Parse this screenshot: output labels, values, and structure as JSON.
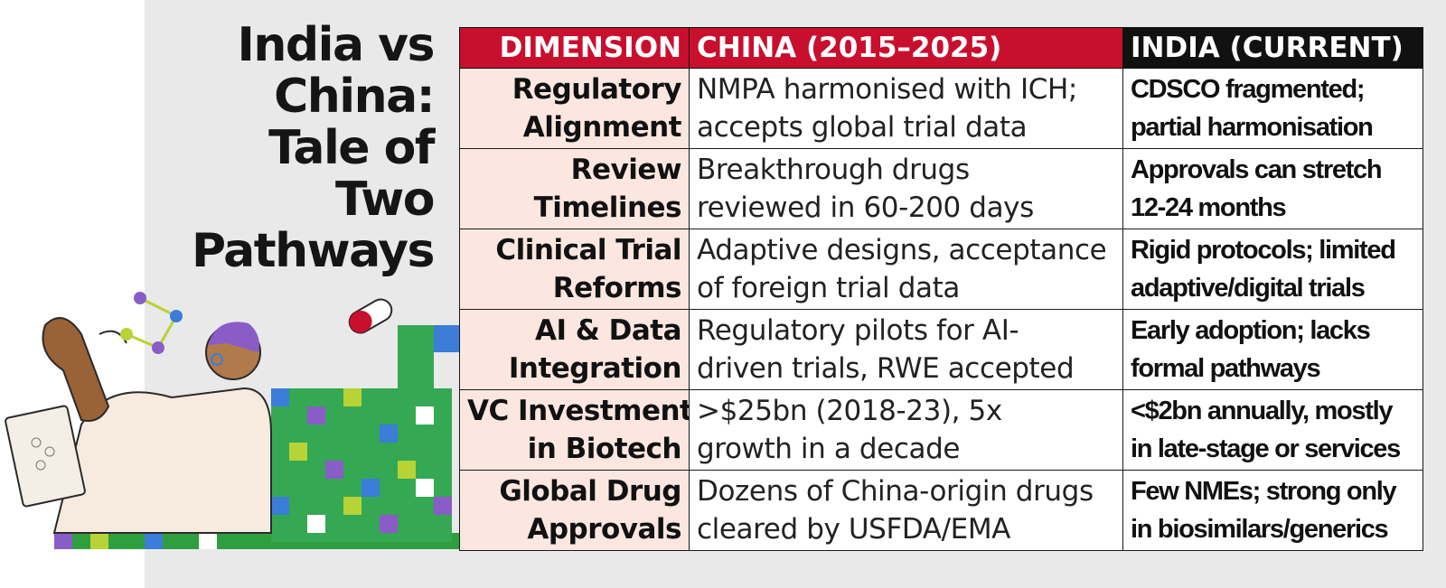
{
  "title_lines": [
    "India vs",
    "China:",
    "Tale of",
    "Two",
    "Pathways"
  ],
  "headers": {
    "dimension": "DIMENSION",
    "china": "CHINA (2015–2025)",
    "india": "INDIA (CURRENT)"
  },
  "rows": [
    {
      "dimension": [
        "Regulatory",
        "Alignment"
      ],
      "china": [
        "NMPA harmonised with ICH;",
        "accepts global trial data"
      ],
      "india": [
        "CDSCO fragmented;",
        "partial harmonisation"
      ]
    },
    {
      "dimension": [
        "Review",
        "Timelines"
      ],
      "china": [
        "Breakthrough drugs",
        "reviewed in 60-200 days"
      ],
      "india": [
        "Approvals can stretch",
        "12-24 months"
      ]
    },
    {
      "dimension": [
        "Clinical Trial",
        "Reforms"
      ],
      "china": [
        "Adaptive designs, acceptance",
        "of foreign trial data"
      ],
      "india": [
        "Rigid protocols; limited",
        "adaptive/digital trials"
      ]
    },
    {
      "dimension": [
        "AI & Data",
        "Integration"
      ],
      "china": [
        "Regulatory pilots for AI-",
        "driven trials, RWE accepted"
      ],
      "india": [
        "Early adoption; lacks",
        "formal pathways"
      ]
    },
    {
      "dimension": [
        "VC Investment",
        "in Biotech"
      ],
      "china": [
        ">$25bn (2018-23), 5x",
        "growth in a decade"
      ],
      "india": [
        "<$2bn annually, mostly",
        "in late-stage or services"
      ]
    },
    {
      "dimension": [
        "Global Drug",
        "Approvals"
      ],
      "china": [
        "Dozens of China-origin drugs",
        "cleared by USFDA/EMA"
      ],
      "india": [
        "Few NMEs; strong only",
        "in biosimilars/generics"
      ]
    }
  ],
  "colors": {
    "header_red": "#c8102e",
    "header_black": "#111111",
    "dimension_bg": "#fbe7df",
    "panel_bg": "#e9e9ea"
  }
}
